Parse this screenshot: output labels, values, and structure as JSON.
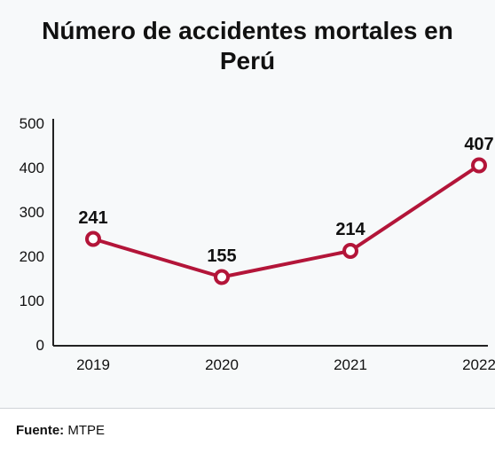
{
  "chart": {
    "type": "line",
    "title": "Número de accidentes mortales en Perú",
    "title_fontsize": 28,
    "background_color": "#f7f9fa",
    "years": [
      "2019",
      "2020",
      "2021",
      "2022"
    ],
    "values": [
      241,
      155,
      214,
      407
    ],
    "data_labels": [
      "241",
      "155",
      "214",
      "407"
    ],
    "ylim": [
      0,
      500
    ],
    "ytick_step": 100,
    "yticks": [
      "0",
      "100",
      "200",
      "300",
      "400",
      "500"
    ],
    "line_color": "#b31539",
    "line_width": 4,
    "marker_fill": "#ffffff",
    "marker_stroke": "#b31539",
    "marker_stroke_width": 4,
    "marker_radius": 7,
    "axis_color": "#222222",
    "label_fontsize": 20,
    "tick_fontsize": 17,
    "text_color": "#111111"
  },
  "source": {
    "label": "Fuente:",
    "value": "MTPE"
  }
}
